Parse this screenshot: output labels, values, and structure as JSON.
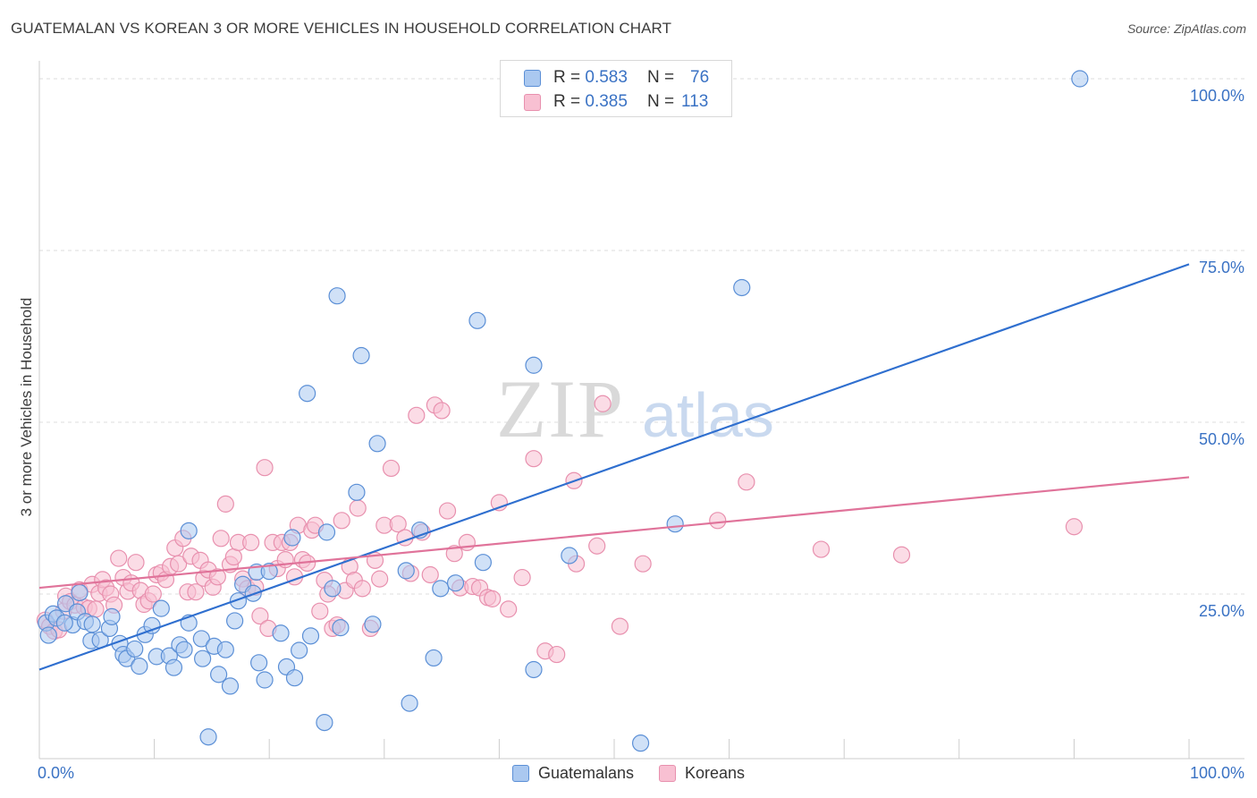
{
  "title": "GUATEMALAN VS KOREAN 3 OR MORE VEHICLES IN HOUSEHOLD CORRELATION CHART",
  "source": "Source: ZipAtlas.com",
  "watermark": {
    "zip": "ZIP",
    "atlas": "atlas"
  },
  "legend": {
    "rows": [
      {
        "r_label": "R =",
        "r_value": "0.583",
        "n_label": "N =",
        "n_value": "76"
      },
      {
        "r_label": "R =",
        "r_value": "0.385",
        "n_label": "N =",
        "n_value": "113"
      }
    ]
  },
  "bottom_legend": [
    "Guatemalans",
    "Koreans"
  ],
  "colors": {
    "blue_fill": "#aac8f0",
    "blue_stroke": "#5b8fd6",
    "blue_line": "#2f6fcf",
    "pink_fill": "#f8c0d2",
    "pink_stroke": "#e890ae",
    "pink_line": "#e0739a",
    "grid": "#dedede",
    "tick_text": "#3a72c4"
  },
  "chart_data": {
    "type": "scatter",
    "title": "GUATEMALAN VS KOREAN 3 OR MORE VEHICLES IN HOUSEHOLD CORRELATION CHART",
    "xlabel": "",
    "ylabel": "3 or more Vehicles in Household",
    "xlim": [
      0,
      100
    ],
    "ylim": [
      0,
      100
    ],
    "x_tick_labels": [
      "0.0%",
      "100.0%"
    ],
    "y_ticks": [
      25,
      50,
      75,
      100
    ],
    "y_tick_labels": [
      "25.0%",
      "50.0%",
      "75.0%",
      "100.0%"
    ],
    "series": [
      {
        "name": "Guatemalans",
        "r": 0.583,
        "n": 76,
        "trend": {
          "x": [
            0,
            100
          ],
          "y": [
            14.0,
            73.0
          ]
        },
        "points": [
          [
            0.6,
            20.8
          ],
          [
            1.2,
            22.1
          ],
          [
            1.5,
            21.5
          ],
          [
            2.3,
            23.6
          ],
          [
            2.9,
            20.5
          ],
          [
            3.3,
            22.4
          ],
          [
            4.0,
            21.0
          ],
          [
            4.6,
            20.6
          ],
          [
            4.5,
            18.2
          ],
          [
            5.3,
            18.3
          ],
          [
            6.1,
            20.0
          ],
          [
            6.3,
            21.7
          ],
          [
            7.0,
            17.8
          ],
          [
            7.3,
            16.2
          ],
          [
            7.6,
            15.6
          ],
          [
            8.3,
            17.0
          ],
          [
            8.7,
            14.5
          ],
          [
            9.2,
            19.1
          ],
          [
            9.8,
            20.4
          ],
          [
            10.2,
            15.9
          ],
          [
            10.6,
            22.9
          ],
          [
            11.3,
            16.0
          ],
          [
            11.7,
            14.3
          ],
          [
            12.2,
            17.6
          ],
          [
            12.6,
            16.9
          ],
          [
            13.0,
            20.8
          ],
          [
            13.0,
            34.2
          ],
          [
            14.1,
            18.5
          ],
          [
            14.2,
            15.6
          ],
          [
            14.7,
            4.2
          ],
          [
            15.2,
            17.4
          ],
          [
            15.6,
            13.3
          ],
          [
            16.2,
            16.9
          ],
          [
            16.6,
            11.6
          ],
          [
            17.0,
            21.1
          ],
          [
            17.3,
            24.0
          ],
          [
            17.7,
            26.4
          ],
          [
            18.6,
            25.1
          ],
          [
            18.9,
            28.2
          ],
          [
            19.1,
            15.0
          ],
          [
            19.6,
            12.5
          ],
          [
            20.0,
            28.3
          ],
          [
            21.0,
            19.3
          ],
          [
            21.5,
            14.4
          ],
          [
            22.0,
            33.2
          ],
          [
            22.2,
            12.8
          ],
          [
            22.6,
            16.8
          ],
          [
            23.3,
            54.2
          ],
          [
            23.6,
            18.9
          ],
          [
            24.8,
            6.3
          ],
          [
            25.0,
            34.0
          ],
          [
            25.5,
            25.8
          ],
          [
            25.9,
            68.4
          ],
          [
            26.2,
            20.1
          ],
          [
            27.6,
            39.8
          ],
          [
            28.0,
            59.7
          ],
          [
            29.0,
            20.6
          ],
          [
            29.4,
            46.9
          ],
          [
            31.9,
            28.4
          ],
          [
            32.2,
            9.1
          ],
          [
            33.1,
            34.3
          ],
          [
            34.3,
            15.7
          ],
          [
            34.9,
            25.8
          ],
          [
            36.2,
            26.6
          ],
          [
            38.1,
            64.8
          ],
          [
            38.6,
            29.6
          ],
          [
            43.0,
            58.3
          ],
          [
            43.0,
            14.0
          ],
          [
            46.1,
            30.6
          ],
          [
            52.3,
            3.3
          ],
          [
            55.3,
            35.2
          ],
          [
            61.1,
            69.6
          ],
          [
            90.5,
            100.0
          ],
          [
            0.8,
            19.0
          ],
          [
            2.2,
            20.8
          ],
          [
            3.5,
            25.2
          ]
        ]
      },
      {
        "name": "Koreans",
        "r": 0.385,
        "n": 113,
        "trend": {
          "x": [
            0,
            100
          ],
          "y": [
            25.9,
            42.0
          ]
        },
        "points": [
          [
            0.5,
            21.2
          ],
          [
            0.9,
            20.3
          ],
          [
            1.3,
            19.6
          ],
          [
            1.7,
            19.8
          ],
          [
            2.1,
            22.5
          ],
          [
            2.3,
            24.7
          ],
          [
            2.7,
            23.9
          ],
          [
            3.1,
            23.4
          ],
          [
            3.5,
            25.6
          ],
          [
            3.9,
            23.1
          ],
          [
            4.3,
            22.9
          ],
          [
            4.6,
            26.4
          ],
          [
            4.9,
            22.8
          ],
          [
            5.2,
            25.1
          ],
          [
            5.5,
            27.1
          ],
          [
            5.8,
            25.9
          ],
          [
            6.2,
            25.0
          ],
          [
            6.5,
            23.4
          ],
          [
            6.9,
            30.2
          ],
          [
            7.3,
            27.4
          ],
          [
            7.7,
            25.4
          ],
          [
            8.0,
            26.6
          ],
          [
            8.4,
            29.6
          ],
          [
            8.8,
            25.5
          ],
          [
            9.1,
            23.5
          ],
          [
            9.5,
            24.0
          ],
          [
            9.9,
            25.0
          ],
          [
            10.2,
            27.8
          ],
          [
            10.6,
            28.1
          ],
          [
            11.0,
            27.1
          ],
          [
            11.4,
            29.0
          ],
          [
            11.8,
            31.7
          ],
          [
            12.1,
            29.4
          ],
          [
            12.5,
            33.1
          ],
          [
            12.9,
            25.3
          ],
          [
            13.2,
            30.5
          ],
          [
            13.6,
            25.3
          ],
          [
            14.0,
            29.9
          ],
          [
            14.3,
            27.3
          ],
          [
            14.7,
            28.5
          ],
          [
            15.1,
            26.0
          ],
          [
            15.5,
            27.5
          ],
          [
            15.8,
            33.1
          ],
          [
            16.2,
            38.1
          ],
          [
            16.6,
            29.3
          ],
          [
            16.9,
            30.4
          ],
          [
            17.3,
            32.5
          ],
          [
            17.7,
            27.2
          ],
          [
            18.1,
            25.8
          ],
          [
            18.4,
            32.5
          ],
          [
            18.8,
            26.0
          ],
          [
            19.2,
            21.8
          ],
          [
            19.6,
            43.4
          ],
          [
            19.9,
            20.0
          ],
          [
            20.3,
            32.5
          ],
          [
            20.7,
            28.7
          ],
          [
            21.1,
            32.5
          ],
          [
            21.4,
            30.0
          ],
          [
            21.8,
            32.5
          ],
          [
            22.2,
            27.5
          ],
          [
            22.5,
            35.0
          ],
          [
            22.9,
            30.0
          ],
          [
            23.3,
            29.5
          ],
          [
            23.7,
            34.3
          ],
          [
            24.0,
            35.0
          ],
          [
            24.4,
            22.5
          ],
          [
            24.8,
            27.0
          ],
          [
            25.1,
            25.0
          ],
          [
            25.5,
            20.0
          ],
          [
            25.9,
            20.5
          ],
          [
            26.3,
            35.7
          ],
          [
            26.6,
            25.5
          ],
          [
            27.0,
            29.0
          ],
          [
            27.4,
            27.0
          ],
          [
            27.7,
            37.5
          ],
          [
            28.1,
            25.8
          ],
          [
            28.8,
            20.0
          ],
          [
            29.2,
            29.9
          ],
          [
            29.6,
            27.2
          ],
          [
            30.0,
            35.0
          ],
          [
            30.6,
            43.3
          ],
          [
            31.2,
            35.2
          ],
          [
            31.8,
            33.2
          ],
          [
            32.3,
            28.0
          ],
          [
            32.8,
            51.0
          ],
          [
            33.3,
            34.0
          ],
          [
            34.0,
            27.8
          ],
          [
            34.4,
            52.5
          ],
          [
            35.0,
            51.7
          ],
          [
            35.5,
            37.1
          ],
          [
            36.1,
            30.9
          ],
          [
            36.6,
            25.9
          ],
          [
            37.2,
            32.5
          ],
          [
            37.7,
            26.1
          ],
          [
            38.3,
            25.9
          ],
          [
            39.0,
            24.5
          ],
          [
            39.4,
            24.3
          ],
          [
            40.0,
            38.3
          ],
          [
            40.8,
            22.8
          ],
          [
            42.0,
            27.4
          ],
          [
            43.0,
            44.7
          ],
          [
            44.0,
            16.7
          ],
          [
            45.0,
            16.2
          ],
          [
            46.5,
            41.5
          ],
          [
            46.7,
            29.4
          ],
          [
            48.5,
            32.0
          ],
          [
            49.0,
            52.7
          ],
          [
            50.5,
            20.3
          ],
          [
            52.5,
            29.4
          ],
          [
            59.0,
            35.7
          ],
          [
            61.5,
            41.3
          ],
          [
            68.0,
            31.5
          ],
          [
            75.0,
            30.7
          ],
          [
            90.0,
            34.8
          ]
        ]
      }
    ]
  }
}
